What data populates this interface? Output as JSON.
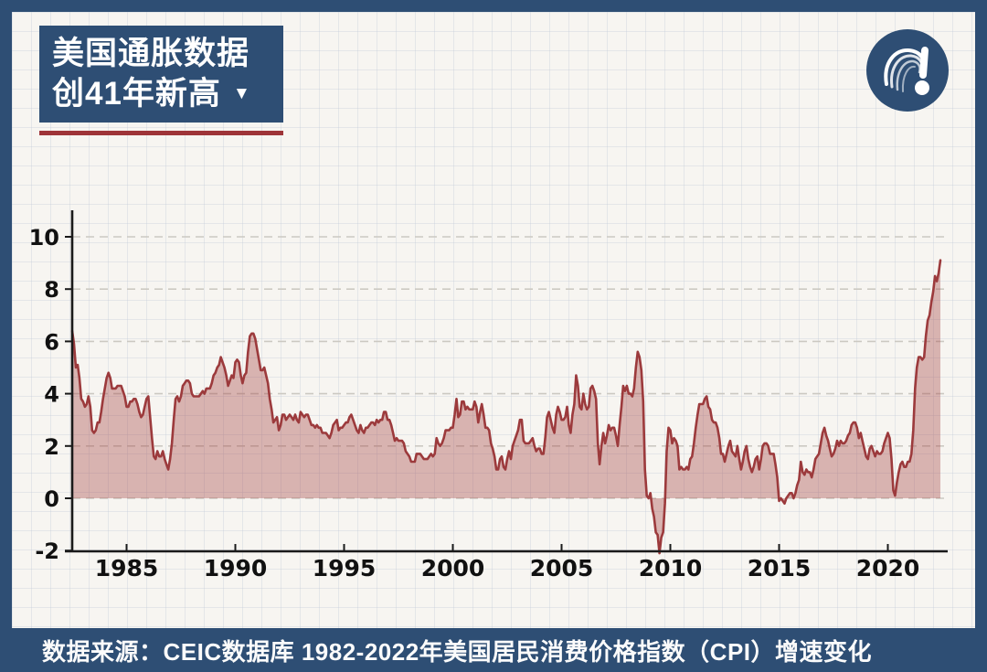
{
  "header": {
    "title_line1": "美国通胀数据",
    "title_line2": "创41年新高",
    "dropdown_icon": "▼",
    "box_color": "#2e4e74",
    "underline_color": "#9e3438",
    "logo_icon": "question-exclamation-logo"
  },
  "footer": {
    "text": "数据来源：CEIC数据库 1982-2022年美国居民消费价格指数（CPI）增速变化",
    "background": "#2e4e74"
  },
  "chart_data": {
    "type": "area",
    "series_name": "美国居民消费价格指数（CPI）同比增速",
    "unit": "%",
    "frequency": "monthly",
    "start": "1982-07",
    "end": "2022-06",
    "x_start_year": 1982.5,
    "x_ticks": [
      1985,
      1990,
      1995,
      2000,
      2005,
      2010,
      2015,
      2020
    ],
    "y_ticks": [
      10,
      8,
      6,
      4,
      2,
      0,
      -2
    ],
    "ylim": [
      -2,
      10.8
    ],
    "grid": "dashed-horizontal",
    "line_color": "#9c3a3c",
    "fill_color": "rgba(166,70,72,0.38)",
    "axis_color": "#1a1a1a",
    "gridline_color": "#ccc9c2",
    "values": [
      6.4,
      5.9,
      5.0,
      5.1,
      4.6,
      3.8,
      3.7,
      3.5,
      3.6,
      3.9,
      3.5,
      2.6,
      2.5,
      2.6,
      2.9,
      2.9,
      3.3,
      3.8,
      4.2,
      4.6,
      4.8,
      4.6,
      4.2,
      4.2,
      4.2,
      4.3,
      4.3,
      4.3,
      4.1,
      3.9,
      3.5,
      3.5,
      3.7,
      3.7,
      3.8,
      3.8,
      3.6,
      3.3,
      3.1,
      3.2,
      3.5,
      3.8,
      3.9,
      3.1,
      2.3,
      1.6,
      1.5,
      1.8,
      1.6,
      1.6,
      1.8,
      1.5,
      1.3,
      1.1,
      1.5,
      2.1,
      3.0,
      3.8,
      3.9,
      3.7,
      3.9,
      4.3,
      4.4,
      4.5,
      4.5,
      4.4,
      4.0,
      3.9,
      3.9,
      3.9,
      3.9,
      4.0,
      4.1,
      4.0,
      4.2,
      4.2,
      4.2,
      4.4,
      4.7,
      4.8,
      5.0,
      5.1,
      5.4,
      5.2,
      5.0,
      4.7,
      4.3,
      4.5,
      4.7,
      4.6,
      5.2,
      5.3,
      5.2,
      4.7,
      4.4,
      4.7,
      4.8,
      5.6,
      6.2,
      6.3,
      6.3,
      6.1,
      5.7,
      5.3,
      4.9,
      4.9,
      5.0,
      4.7,
      4.4,
      3.8,
      3.4,
      2.9,
      3.0,
      3.1,
      2.6,
      2.8,
      3.2,
      3.2,
      3.0,
      3.1,
      3.2,
      3.1,
      3.0,
      3.2,
      3.0,
      2.9,
      3.3,
      3.2,
      3.1,
      3.2,
      3.2,
      3.0,
      2.8,
      2.8,
      2.7,
      2.8,
      2.7,
      2.7,
      2.5,
      2.5,
      2.5,
      2.4,
      2.3,
      2.5,
      2.8,
      2.9,
      3.0,
      2.6,
      2.7,
      2.7,
      2.8,
      2.9,
      2.9,
      3.1,
      3.2,
      3.0,
      2.8,
      2.6,
      2.5,
      2.8,
      2.6,
      2.5,
      2.7,
      2.7,
      2.8,
      2.9,
      2.9,
      2.8,
      3.0,
      2.9,
      3.0,
      3.0,
      3.3,
      3.3,
      3.0,
      3.0,
      2.8,
      2.5,
      2.2,
      2.3,
      2.2,
      2.2,
      2.2,
      2.1,
      1.8,
      1.7,
      1.6,
      1.4,
      1.4,
      1.4,
      1.7,
      1.7,
      1.7,
      1.6,
      1.5,
      1.5,
      1.5,
      1.6,
      1.7,
      1.6,
      1.7,
      2.3,
      2.1,
      2.0,
      2.1,
      2.3,
      2.6,
      2.6,
      2.6,
      2.7,
      2.7,
      3.2,
      3.8,
      3.1,
      3.2,
      3.7,
      3.7,
      3.4,
      3.5,
      3.4,
      3.4,
      3.4,
      3.7,
      3.5,
      2.9,
      3.3,
      3.6,
      3.2,
      2.7,
      2.7,
      2.6,
      2.1,
      1.9,
      1.6,
      1.1,
      1.1,
      1.5,
      1.6,
      1.2,
      1.1,
      1.5,
      1.8,
      1.5,
      2.0,
      2.2,
      2.4,
      2.6,
      3.0,
      3.0,
      2.2,
      2.1,
      2.1,
      2.1,
      2.2,
      2.3,
      2.0,
      1.8,
      1.9,
      1.9,
      1.7,
      1.7,
      2.3,
      3.1,
      3.3,
      3.0,
      2.7,
      2.5,
      3.2,
      3.5,
      3.3,
      3.0,
      3.0,
      3.1,
      3.5,
      2.8,
      2.5,
      3.2,
      3.6,
      4.7,
      4.3,
      3.5,
      3.4,
      4.0,
      3.6,
      3.4,
      3.5,
      4.2,
      4.3,
      4.1,
      3.8,
      2.1,
      1.3,
      2.0,
      2.5,
      2.1,
      2.4,
      2.8,
      2.6,
      2.7,
      2.7,
      2.4,
      2.0,
      2.8,
      3.5,
      4.3,
      4.1,
      4.3,
      4.0,
      4.0,
      3.9,
      4.2,
      5.0,
      5.6,
      5.4,
      4.9,
      3.7,
      1.1,
      0.1,
      0.0,
      0.2,
      -0.4,
      -0.7,
      -1.3,
      -1.4,
      -2.1,
      -1.5,
      -1.3,
      -0.2,
      1.8,
      2.7,
      2.6,
      2.1,
      2.3,
      2.2,
      2.0,
      1.1,
      1.2,
      1.1,
      1.1,
      1.2,
      1.1,
      1.5,
      1.6,
      2.1,
      2.7,
      3.2,
      3.6,
      3.6,
      3.6,
      3.8,
      3.9,
      3.5,
      3.4,
      3.0,
      2.9,
      2.9,
      2.7,
      2.3,
      1.7,
      1.7,
      1.4,
      1.7,
      2.0,
      2.2,
      1.8,
      1.7,
      1.6,
      2.0,
      1.5,
      1.1,
      1.4,
      1.8,
      2.0,
      1.5,
      1.2,
      1.0,
      1.2,
      1.5,
      1.6,
      1.1,
      1.5,
      2.0,
      2.1,
      2.1,
      2.0,
      1.7,
      1.7,
      1.7,
      1.3,
      0.8,
      -0.1,
      0.0,
      -0.1,
      -0.2,
      0.0,
      0.1,
      0.2,
      0.2,
      0.0,
      0.2,
      0.5,
      0.7,
      1.4,
      1.0,
      0.9,
      1.1,
      1.0,
      1.0,
      0.8,
      1.1,
      1.5,
      1.6,
      1.7,
      2.1,
      2.5,
      2.7,
      2.4,
      2.2,
      1.9,
      1.6,
      1.7,
      1.9,
      2.2,
      2.0,
      2.2,
      2.1,
      2.1,
      2.2,
      2.4,
      2.5,
      2.8,
      2.9,
      2.9,
      2.7,
      2.3,
      2.5,
      2.2,
      1.9,
      1.6,
      1.5,
      1.9,
      2.0,
      1.8,
      1.6,
      1.8,
      1.7,
      1.7,
      1.8,
      2.1,
      2.3,
      2.5,
      2.3,
      1.5,
      0.3,
      0.1,
      0.6,
      1.0,
      1.3,
      1.4,
      1.2,
      1.2,
      1.4,
      1.4,
      1.7,
      2.6,
      4.2,
      5.0,
      5.4,
      5.4,
      5.3,
      5.4,
      6.2,
      6.8,
      7.0,
      7.5,
      7.9,
      8.5,
      8.3,
      8.6,
      9.1
    ]
  }
}
